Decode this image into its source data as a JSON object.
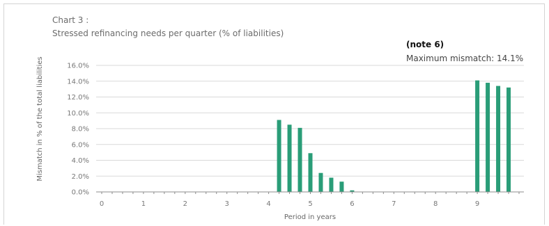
{
  "chart_data": {
    "type": "bar",
    "title": "Chart 3 :",
    "subtitle": "Stressed refinancing needs per quarter  (% of liabilities)",
    "annotation": {
      "heading": "(note 6)",
      "text": "Maximum mismatch: 14.1%"
    },
    "xlabel": "Period in years",
    "ylabel": "Mismatch in % of the total liabilities",
    "x_ticks": [
      "0",
      "1",
      "2",
      "3",
      "4",
      "5",
      "6",
      "7",
      "8",
      "9"
    ],
    "y_ticks": [
      "0.0%",
      "2.0%",
      "4.0%",
      "6.0%",
      "8.0%",
      "10.0%",
      "12.0%",
      "14.0%",
      "16.0%"
    ],
    "ylim": [
      0,
      16
    ],
    "xlim": [
      0,
      10
    ],
    "grid": "horizontal",
    "bar_color": "#2a9d78",
    "series": [
      {
        "x": [
          4.25,
          4.5,
          4.75,
          5.0,
          5.25,
          5.5,
          5.75,
          6.0,
          9.0,
          9.25,
          9.5,
          9.75
        ],
        "values": [
          9.1,
          8.5,
          8.1,
          4.9,
          2.4,
          1.8,
          1.3,
          0.2,
          14.1,
          13.8,
          13.4,
          13.2
        ]
      }
    ]
  }
}
